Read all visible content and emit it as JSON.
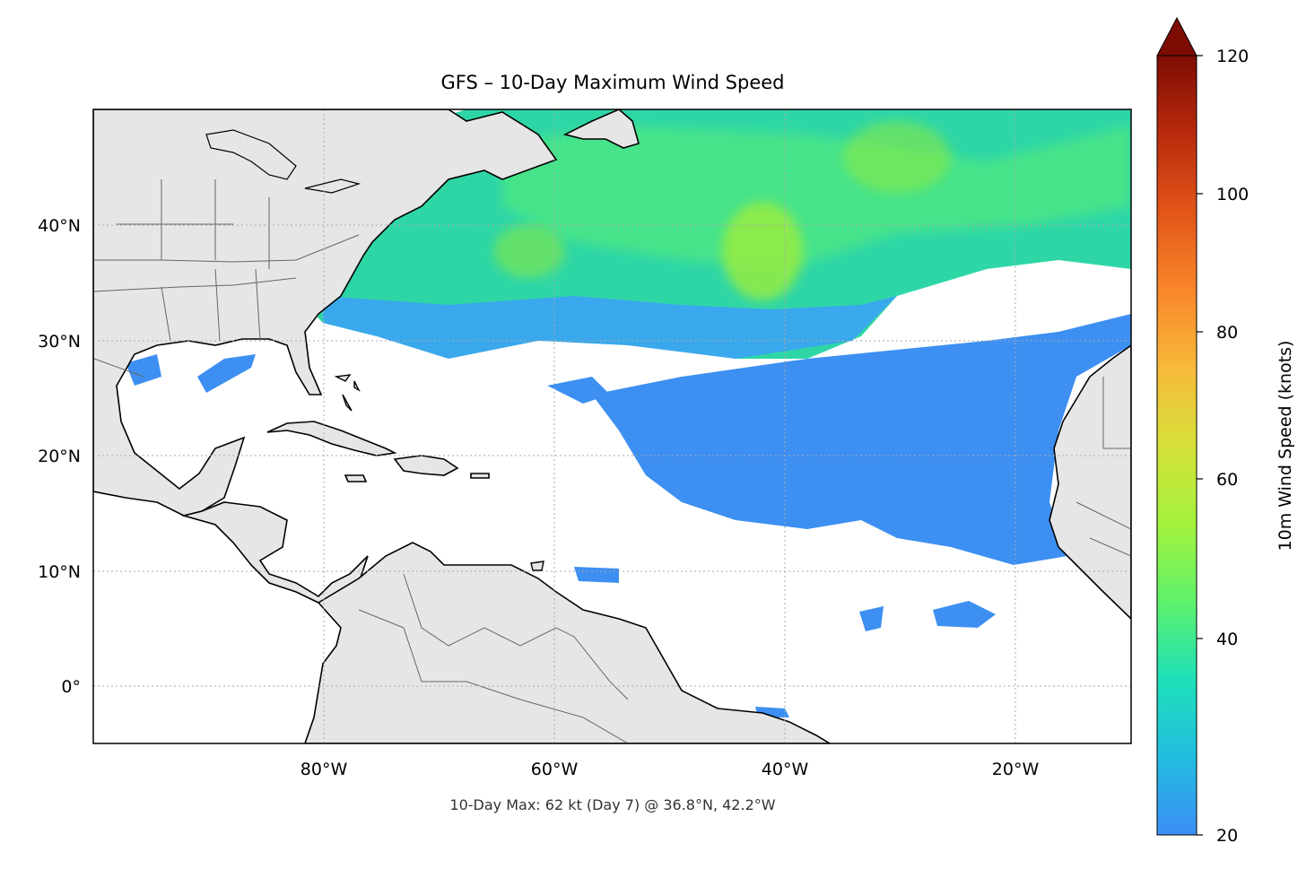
{
  "title": "GFS – 10-Day Maximum Wind Speed",
  "footer_note": "10-Day Max: 62 kt (Day 7) @ 36.8°N, 42.2°W",
  "map": {
    "lon_range": [
      -100,
      -10
    ],
    "lat_range": [
      -5,
      50
    ],
    "lat_tick_labels": [
      "40°N",
      "30°N",
      "20°N",
      "10°N",
      "0°"
    ],
    "lon_tick_labels": [
      "80°W",
      "60°W",
      "40°W",
      "20°W"
    ],
    "gridlines": true,
    "land_color": "#e6e6e6",
    "coast_color": "#000000",
    "border_color": "#666666",
    "colors": {
      "wind_low": "#3f8ef2",
      "wind_mid": "#26c8b0",
      "wind_high": "#9aef3a"
    }
  },
  "colorbar": {
    "label": "10m Wind Speed (knots)",
    "tick_labels": [
      "120",
      "100",
      "80",
      "60",
      "40",
      "20"
    ],
    "range": [
      20,
      120
    ],
    "extend": "max",
    "colormap": "turbo"
  }
}
